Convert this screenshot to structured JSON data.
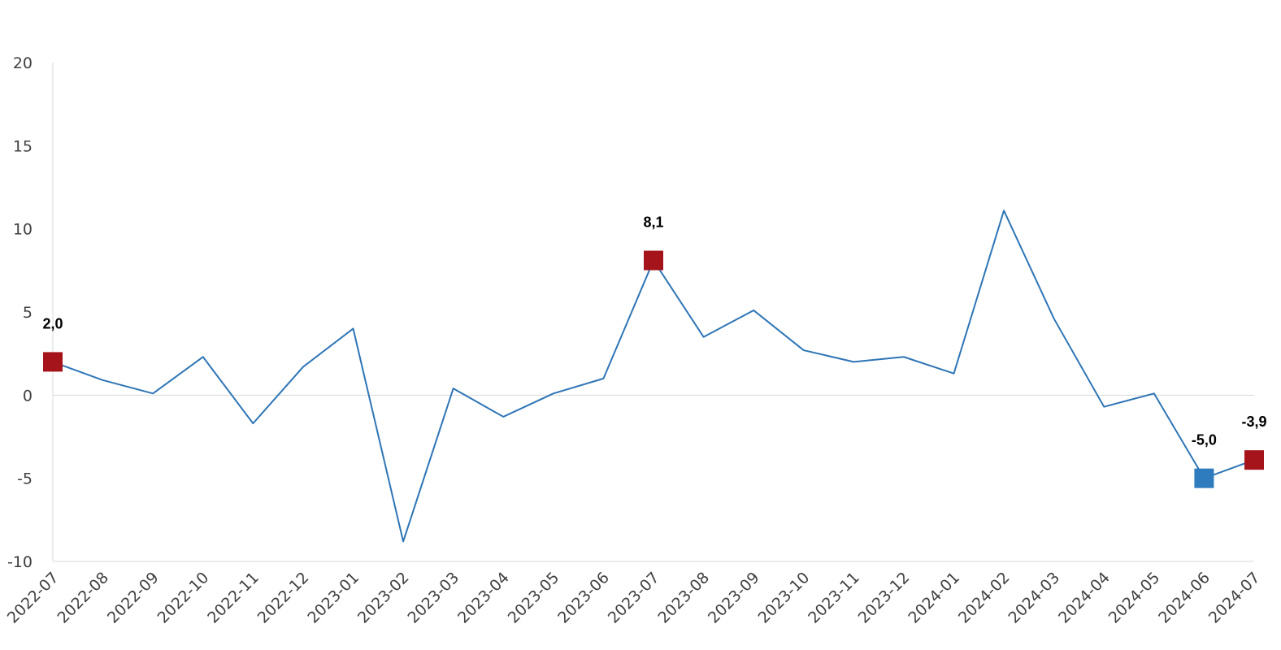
{
  "chart_data": {
    "type": "line",
    "categories": [
      "2022-07",
      "2022-08",
      "2022-09",
      "2022-10",
      "2022-11",
      "2022-12",
      "2023-01",
      "2023-02",
      "2023-03",
      "2023-04",
      "2023-05",
      "2023-06",
      "2023-07",
      "2023-08",
      "2023-09",
      "2023-10",
      "2023-11",
      "2023-12",
      "2024-01",
      "2024-02",
      "2024-03",
      "2024-04",
      "2024-05",
      "2024-06",
      "2024-07"
    ],
    "series": [
      {
        "values": [
          2.0,
          0.9,
          0.1,
          2.3,
          -1.7,
          1.7,
          4.0,
          -8.8,
          0.4,
          -1.3,
          0.1,
          1.0,
          8.1,
          3.5,
          5.1,
          2.7,
          2.0,
          2.3,
          1.3,
          11.1,
          4.6,
          -0.7,
          0.1,
          -5.0,
          -3.9
        ],
        "color": "#2E75B6"
      }
    ],
    "highlights": [
      {
        "index": 0,
        "label": "2,0",
        "color": "#A5141B"
      },
      {
        "index": 12,
        "label": "8,1",
        "color": "#A5141B"
      },
      {
        "index": 23,
        "label": "-5,0",
        "color": "#2E7BBE"
      },
      {
        "index": 24,
        "label": "-3,9",
        "color": "#A5141B"
      }
    ],
    "ylim": [
      -10,
      20
    ],
    "yticks": [
      -10,
      -5,
      0,
      5,
      10,
      15,
      20
    ],
    "title": "",
    "xlabel": "",
    "ylabel": "",
    "grid": false,
    "zero_line": true
  }
}
